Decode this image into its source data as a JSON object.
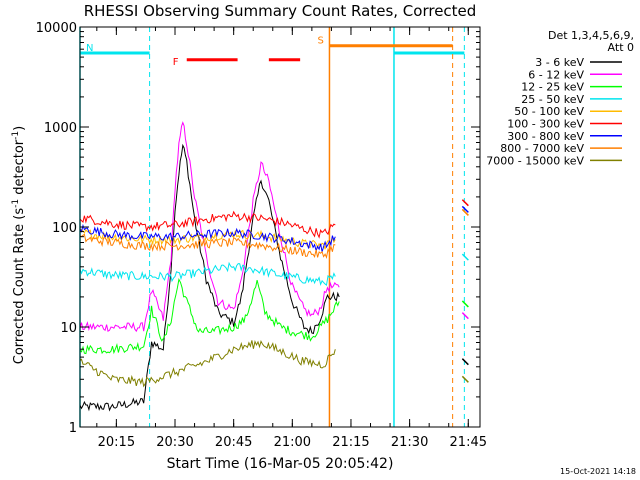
{
  "chart_data": {
    "type": "line",
    "title": "RHESSI Observing Summary Count Rates, Corrected",
    "xlabel": "Start Time (16-Mar-05 20:05:42)",
    "ylabel": "Corrected Count Rate (s⁻¹ detector⁻¹)",
    "ylabel_main": "Corrected Count Rate (s",
    "ylabel_sup1": "-1",
    "ylabel_mid": " detector",
    "ylabel_sup2": "-1",
    "ylabel_end": ")",
    "y_scale": "log",
    "ylim": [
      1,
      10000
    ],
    "xlim": [
      "20:05:42",
      "21:48:00"
    ],
    "x_ticks": [
      "20:15",
      "20:30",
      "20:45",
      "21:00",
      "21:15",
      "21:30",
      "21:45"
    ],
    "y_ticks": [
      "1",
      "10",
      "100",
      "1000",
      "10000"
    ],
    "legend_header": [
      "Det 1,3,4,5,6,9,",
      "Att 0"
    ],
    "legend_position": "right",
    "footer_date": "15-Oct-2021 14:18",
    "annotations": [
      {
        "label": "N",
        "color": "#00e5ee"
      },
      {
        "label": "F",
        "color": "#ff0000"
      },
      {
        "label": "S",
        "color": "#ff7f00"
      }
    ],
    "series": [
      {
        "name": "3 - 6 keV",
        "color": "#000000",
        "points": [
          [
            "20:05:42",
            1.6
          ],
          [
            "20:14",
            1.6
          ],
          [
            "20:22",
            1.8
          ],
          [
            "20:24",
            7
          ],
          [
            "20:27",
            6
          ],
          [
            "20:29",
            40
          ],
          [
            "20:30",
            150
          ],
          [
            "20:31",
            350
          ],
          [
            "20:32",
            650
          ],
          [
            "20:33",
            450
          ],
          [
            "20:35",
            120
          ],
          [
            "20:38",
            30
          ],
          [
            "20:41",
            14
          ],
          [
            "20:45",
            11
          ],
          [
            "20:47",
            20
          ],
          [
            "20:50",
            120
          ],
          [
            "20:52",
            300
          ],
          [
            "20:54",
            180
          ],
          [
            "20:57",
            50
          ],
          [
            "21:00",
            18
          ],
          [
            "21:03",
            10
          ],
          [
            "21:05",
            9
          ],
          [
            "21:07",
            12
          ],
          [
            "21:09",
            20
          ],
          [
            "21:12",
            20
          ]
        ]
      },
      {
        "name": "6 - 12 keV",
        "color": "#ff00ff",
        "points": [
          [
            "20:05:42",
            10
          ],
          [
            "20:14",
            10
          ],
          [
            "20:22",
            10
          ],
          [
            "20:24",
            23
          ],
          [
            "20:27",
            12
          ],
          [
            "20:29",
            50
          ],
          [
            "20:30",
            250
          ],
          [
            "20:31",
            650
          ],
          [
            "20:32",
            1100
          ],
          [
            "20:33",
            700
          ],
          [
            "20:35",
            200
          ],
          [
            "20:38",
            50
          ],
          [
            "20:41",
            18
          ],
          [
            "20:45",
            15
          ],
          [
            "20:47",
            30
          ],
          [
            "20:50",
            180
          ],
          [
            "20:52",
            430
          ],
          [
            "20:54",
            280
          ],
          [
            "20:57",
            80
          ],
          [
            "21:00",
            25
          ],
          [
            "21:03",
            15
          ],
          [
            "21:05",
            13
          ],
          [
            "21:07",
            15
          ],
          [
            "21:09",
            25
          ],
          [
            "21:12",
            25
          ]
        ]
      },
      {
        "name": "12 - 25 keV",
        "color": "#00ff00",
        "points": [
          [
            "20:05:42",
            6
          ],
          [
            "20:14",
            6
          ],
          [
            "20:22",
            6.5
          ],
          [
            "20:24",
            15
          ],
          [
            "20:27",
            7
          ],
          [
            "20:29",
            12
          ],
          [
            "20:31",
            30
          ],
          [
            "20:33",
            18
          ],
          [
            "20:36",
            9
          ],
          [
            "20:40",
            9
          ],
          [
            "20:45",
            10
          ],
          [
            "20:48",
            12
          ],
          [
            "20:51",
            28
          ],
          [
            "20:53",
            14
          ],
          [
            "20:57",
            10
          ],
          [
            "21:00",
            9
          ],
          [
            "21:05",
            8
          ],
          [
            "21:09",
            12
          ],
          [
            "21:12",
            18
          ]
        ]
      },
      {
        "name": "25 - 50 keV",
        "color": "#00e5ee",
        "points": [
          [
            "20:05:42",
            37
          ],
          [
            "20:14",
            33
          ],
          [
            "20:22",
            32
          ],
          [
            "20:30",
            32
          ],
          [
            "20:38",
            36
          ],
          [
            "20:45",
            40
          ],
          [
            "20:50",
            38
          ],
          [
            "20:57",
            33
          ],
          [
            "21:03",
            30
          ],
          [
            "21:08",
            28
          ],
          [
            "21:11",
            32
          ]
        ]
      },
      {
        "name": "50 - 100 keV",
        "color": "#ffbb00",
        "points": [
          [
            "20:05:42",
            88
          ],
          [
            "20:14",
            80
          ],
          [
            "20:22",
            75
          ],
          [
            "20:30",
            75
          ],
          [
            "20:38",
            80
          ],
          [
            "20:45",
            86
          ],
          [
            "20:52",
            82
          ],
          [
            "20:58",
            75
          ],
          [
            "21:03",
            68
          ],
          [
            "21:08",
            65
          ],
          [
            "21:11",
            75
          ]
        ]
      },
      {
        "name": "100 - 300 keV",
        "color": "#ff0000",
        "points": [
          [
            "20:05:42",
            125
          ],
          [
            "20:14",
            108
          ],
          [
            "20:22",
            100
          ],
          [
            "20:30",
            105
          ],
          [
            "20:38",
            120
          ],
          [
            "20:45",
            130
          ],
          [
            "20:52",
            122
          ],
          [
            "20:58",
            110
          ],
          [
            "21:03",
            95
          ],
          [
            "21:08",
            85
          ],
          [
            "21:11",
            105
          ]
        ]
      },
      {
        "name": "300 - 800 keV",
        "color": "#0000ff",
        "points": [
          [
            "20:05:42",
            97
          ],
          [
            "20:14",
            85
          ],
          [
            "20:22",
            80
          ],
          [
            "20:30",
            80
          ],
          [
            "20:38",
            85
          ],
          [
            "20:45",
            88
          ],
          [
            "20:52",
            82
          ],
          [
            "20:58",
            75
          ],
          [
            "21:03",
            68
          ],
          [
            "21:08",
            62
          ],
          [
            "21:11",
            80
          ]
        ]
      },
      {
        "name": "800 - 7000 keV",
        "color": "#ff7f00",
        "points": [
          [
            "20:05:42",
            78
          ],
          [
            "20:14",
            70
          ],
          [
            "20:22",
            65
          ],
          [
            "20:30",
            65
          ],
          [
            "20:38",
            68
          ],
          [
            "20:45",
            70
          ],
          [
            "20:52",
            66
          ],
          [
            "20:58",
            60
          ],
          [
            "21:03",
            56
          ],
          [
            "21:08",
            52
          ],
          [
            "21:11",
            66
          ]
        ]
      },
      {
        "name": "7000 - 15000 keV",
        "color": "#808000",
        "points": [
          [
            "20:05:42",
            4.5
          ],
          [
            "20:14",
            3
          ],
          [
            "20:22",
            2.8
          ],
          [
            "20:30",
            3.5
          ],
          [
            "20:38",
            4.5
          ],
          [
            "20:45",
            6
          ],
          [
            "20:52",
            7
          ],
          [
            "20:58",
            5.5
          ],
          [
            "21:03",
            4.5
          ],
          [
            "21:08",
            4.2
          ],
          [
            "21:11",
            6
          ]
        ]
      }
    ],
    "late_points": [
      {
        "x": "21:44",
        "values": [
          4.5,
          13,
          17,
          50,
          140,
          175,
          150,
          140,
          3
        ]
      }
    ],
    "markers": [
      {
        "label": "N",
        "color": "#00e5ee",
        "level": 5500,
        "segments": [
          [
            "20:05:42",
            "20:23:30"
          ],
          [
            "21:26",
            "21:44"
          ]
        ],
        "vlines_solid": [
          "20:05:42",
          "21:26"
        ],
        "vlines_dashed": [
          "20:23:30",
          "21:44"
        ]
      },
      {
        "label": "F",
        "color": "#ff0000",
        "level": 4700,
        "segments": [
          [
            "20:33",
            "20:46"
          ],
          [
            "20:54",
            "21:02"
          ]
        ]
      },
      {
        "label": "S",
        "color": "#ff7f00",
        "level": 6500,
        "segments": [
          [
            "21:09:30",
            "21:41"
          ]
        ],
        "vlines_solid": [
          "21:09:30"
        ],
        "vlines_dashed": [
          "21:41"
        ]
      }
    ]
  }
}
